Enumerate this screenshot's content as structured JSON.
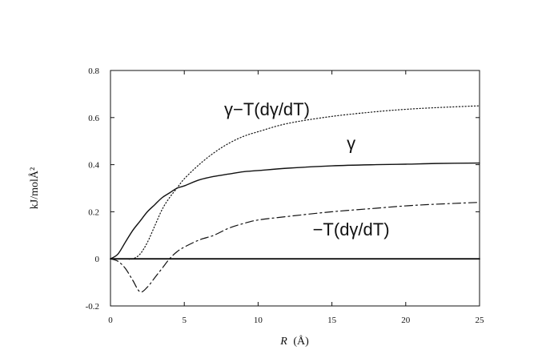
{
  "chart_data": {
    "type": "line",
    "title": "",
    "xlabel_italic": "R",
    "xlabel_unit": "(Å)",
    "ylabel": "kJ/molÅ²",
    "xlim": [
      0,
      25
    ],
    "ylim": [
      -0.2,
      0.8
    ],
    "x_ticks": [
      "0",
      "5",
      "10",
      "15",
      "20",
      "25"
    ],
    "y_ticks": [
      "-0.2",
      "0",
      "0.2",
      "0.4",
      "0.6",
      "0.8"
    ],
    "grid": false,
    "legend": "none",
    "series": [
      {
        "name": "γ",
        "style": "solid",
        "points": [
          [
            0,
            0
          ],
          [
            0.5,
            0.02
          ],
          [
            1,
            0.07
          ],
          [
            1.5,
            0.12
          ],
          [
            2,
            0.16
          ],
          [
            2.5,
            0.2
          ],
          [
            3,
            0.23
          ],
          [
            3.5,
            0.26
          ],
          [
            4,
            0.28
          ],
          [
            4.5,
            0.3
          ],
          [
            5,
            0.31
          ],
          [
            6,
            0.335
          ],
          [
            7,
            0.35
          ],
          [
            8,
            0.36
          ],
          [
            9,
            0.37
          ],
          [
            10,
            0.375
          ],
          [
            12,
            0.385
          ],
          [
            15,
            0.395
          ],
          [
            18,
            0.4
          ],
          [
            20,
            0.402
          ],
          [
            22,
            0.405
          ],
          [
            25,
            0.407
          ]
        ]
      },
      {
        "name": "γ−T(dγ/dT)",
        "style": "dotted",
        "points": [
          [
            0,
            0
          ],
          [
            1,
            0
          ],
          [
            1.5,
            0
          ],
          [
            2,
            0.02
          ],
          [
            2.5,
            0.07
          ],
          [
            3,
            0.14
          ],
          [
            3.5,
            0.21
          ],
          [
            4,
            0.26
          ],
          [
            4.5,
            0.3
          ],
          [
            5,
            0.34
          ],
          [
            6,
            0.4
          ],
          [
            7,
            0.45
          ],
          [
            8,
            0.49
          ],
          [
            9,
            0.52
          ],
          [
            10,
            0.54
          ],
          [
            12,
            0.575
          ],
          [
            15,
            0.605
          ],
          [
            18,
            0.625
          ],
          [
            20,
            0.635
          ],
          [
            22,
            0.642
          ],
          [
            25,
            0.65
          ]
        ]
      },
      {
        "name": "−T(dγ/dT)",
        "style": "dashdot",
        "points": [
          [
            0,
            0
          ],
          [
            0.5,
            -0.01
          ],
          [
            1,
            -0.04
          ],
          [
            1.5,
            -0.09
          ],
          [
            2,
            -0.14
          ],
          [
            2.5,
            -0.12
          ],
          [
            3,
            -0.08
          ],
          [
            3.5,
            -0.04
          ],
          [
            4,
            0
          ],
          [
            4.5,
            0.03
          ],
          [
            5,
            0.05
          ],
          [
            6,
            0.08
          ],
          [
            7,
            0.1
          ],
          [
            8,
            0.13
          ],
          [
            9,
            0.15
          ],
          [
            10,
            0.165
          ],
          [
            12,
            0.18
          ],
          [
            15,
            0.2
          ],
          [
            18,
            0.215
          ],
          [
            20,
            0.225
          ],
          [
            22,
            0.232
          ],
          [
            25,
            0.24
          ]
        ]
      },
      {
        "name": "",
        "style": "solid-heavy",
        "points": [
          [
            0,
            0
          ],
          [
            25,
            0
          ]
        ]
      }
    ],
    "annotations": [
      {
        "text": "γ−T(dγ/dT)",
        "x": 10.6,
        "y": 0.61
      },
      {
        "text": "γ",
        "x": 16.3,
        "y": 0.465
      },
      {
        "text": "−T(dγ/dT)",
        "x": 16.3,
        "y": 0.1
      }
    ]
  }
}
